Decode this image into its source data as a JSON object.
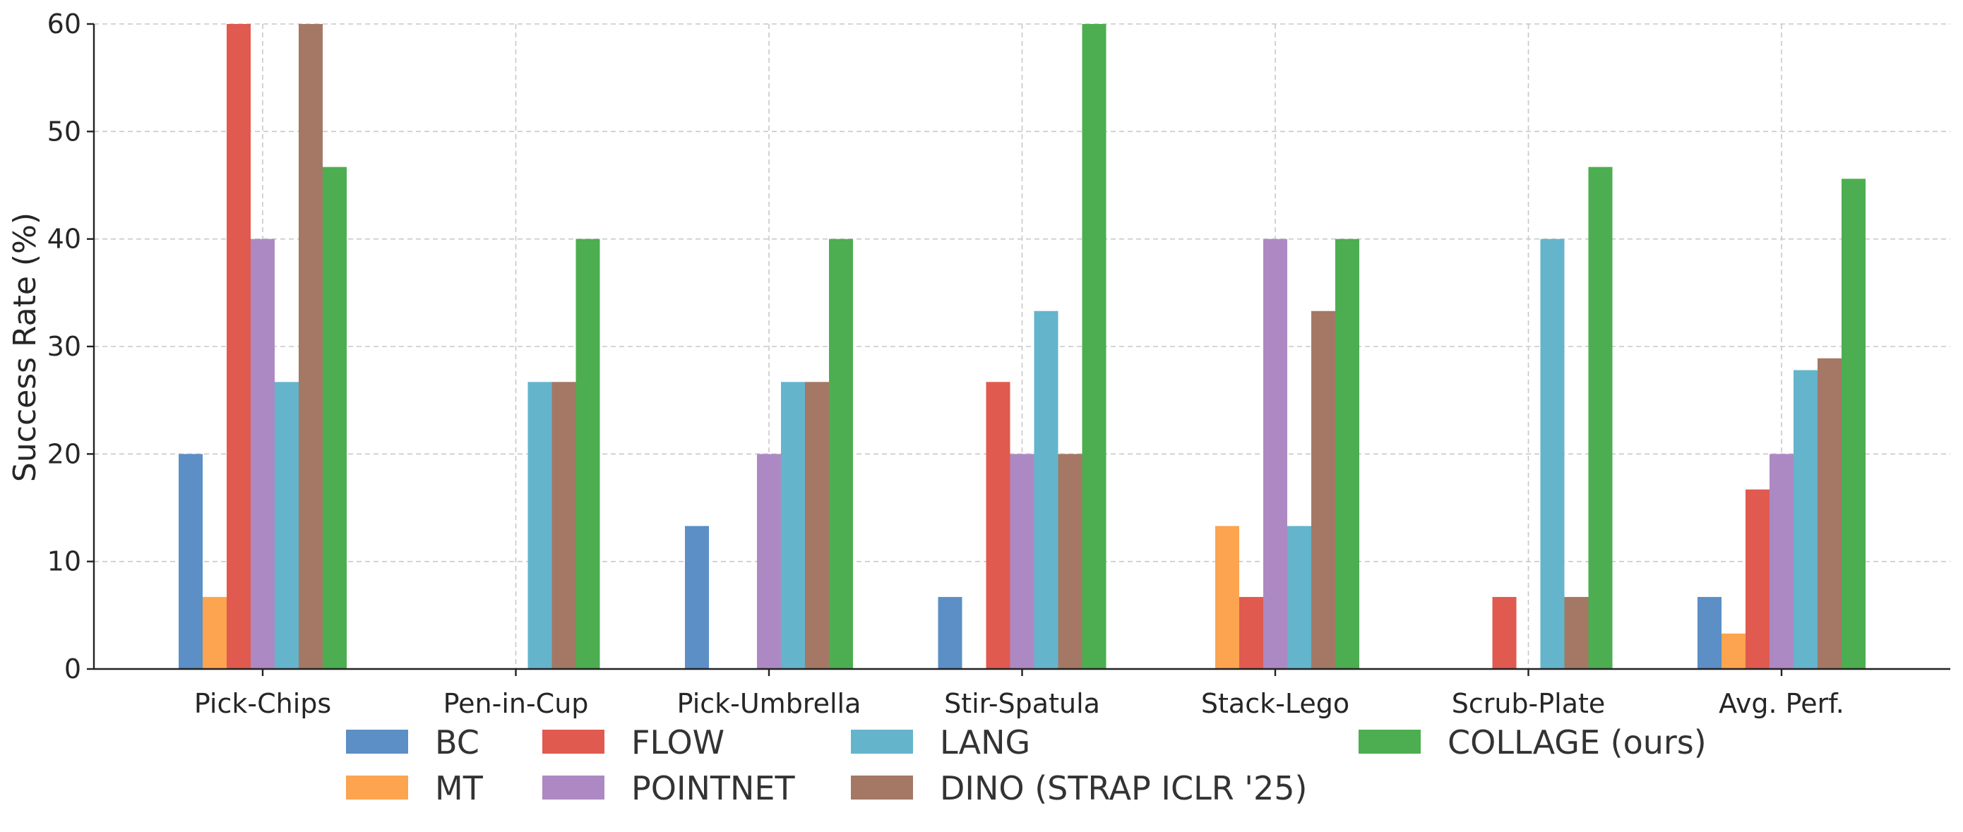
{
  "chart_data": {
    "type": "bar",
    "title": "",
    "xlabel": "",
    "ylabel": "Success Rate (%)",
    "ylim": [
      0,
      60
    ],
    "yticks": [
      0,
      10,
      20,
      30,
      40,
      50,
      60
    ],
    "grid": true,
    "legend_position": "bottom",
    "categories": [
      "Pick-Chips",
      "Pen-in-Cup",
      "Pick-Umbrella",
      "Stir-Spatula",
      "Stack-Lego",
      "Scrub-Plate",
      "Avg. Perf."
    ],
    "series": [
      {
        "name": "BC",
        "color": "#5b8fc5",
        "values": [
          20,
          0,
          13.3,
          6.7,
          0,
          0,
          6.7
        ]
      },
      {
        "name": "MT",
        "color": "#fca44f",
        "values": [
          6.7,
          0,
          0,
          0,
          13.3,
          0,
          3.3
        ]
      },
      {
        "name": "FLOW",
        "color": "#e05a50",
        "values": [
          60,
          0,
          0,
          26.7,
          6.7,
          6.7,
          16.7
        ]
      },
      {
        "name": "POINTNET",
        "color": "#ad89c3",
        "values": [
          40,
          0,
          20,
          20,
          40,
          0,
          20
        ]
      },
      {
        "name": "LANG",
        "color": "#64b4cc",
        "values": [
          26.7,
          26.7,
          26.7,
          33.3,
          13.3,
          40,
          27.8
        ]
      },
      {
        "name": "DINO (STRAP ICLR '25)",
        "color": "#a47865",
        "values": [
          60,
          26.7,
          26.7,
          20,
          33.3,
          6.7,
          28.9
        ]
      },
      {
        "name": "COLLAGE (ours)",
        "color": "#4cae50",
        "values": [
          46.7,
          40,
          40,
          60,
          40,
          46.7,
          45.6
        ]
      }
    ]
  }
}
